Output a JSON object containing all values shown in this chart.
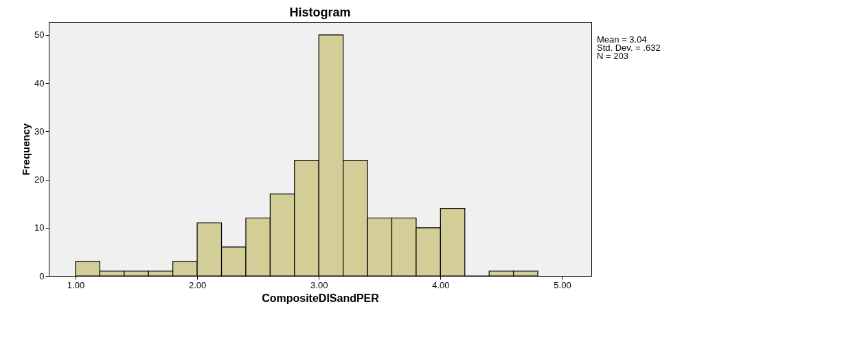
{
  "chart_data": {
    "type": "histogram",
    "title": "Histogram",
    "xlabel": "CompositeDISandPER",
    "ylabel": "Frequency",
    "bins": [
      1.0,
      1.2,
      1.4,
      1.6,
      1.8,
      2.0,
      2.2,
      2.4,
      2.6,
      2.8,
      3.0,
      3.2,
      3.4,
      3.6,
      3.8,
      4.0,
      4.2,
      4.4,
      4.6,
      4.8
    ],
    "values": [
      3,
      1,
      1,
      1,
      3,
      11,
      6,
      12,
      17,
      24,
      50,
      24,
      12,
      12,
      10,
      14,
      0,
      1,
      1
    ],
    "color": "#d3ce98",
    "xlim": [
      0.78,
      5.24
    ],
    "ylim": [
      0,
      52.7
    ],
    "xticks": [
      {
        "value": 1,
        "label": "1.00"
      },
      {
        "value": 2,
        "label": "2.00"
      },
      {
        "value": 3,
        "label": "3.00"
      },
      {
        "value": 4,
        "label": "4.00"
      },
      {
        "value": 5,
        "label": "5.00"
      }
    ],
    "yticks": [
      0,
      10,
      20,
      30,
      40,
      50
    ],
    "grid": false,
    "annotations": [
      "Mean = 3.04",
      "Std. Dev. = .632",
      "N = 203"
    ]
  }
}
